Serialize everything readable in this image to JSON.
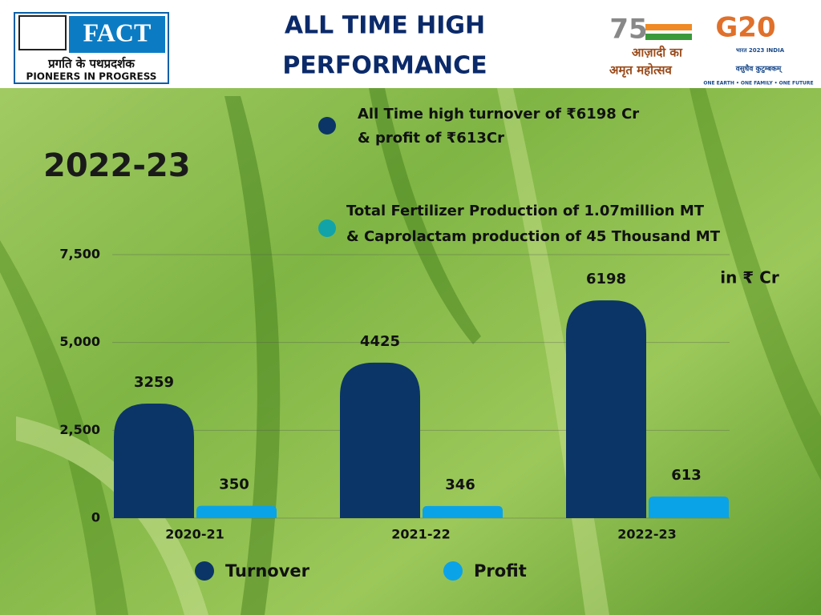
{
  "header": {
    "logo_name": "FACT",
    "logo_tagline_hindi": "प्रगति के पथप्रदर्शक",
    "logo_tagline": "PIONEERS IN PROGRESS",
    "title_lines": [
      "ALL TIME HIGH",
      "PERFORMANCE"
    ],
    "azadi_number": "75",
    "azadi_text": [
      "आज़ादी का",
      "अमृत महोत्सव"
    ],
    "g20": "G20",
    "g20_sub": "भारत 2023 INDIA",
    "g20_motto_hindi": "वसुधैव कुटुम्बकम्",
    "g20_motto": "ONE EARTH • ONE FAMILY • ONE FUTURE"
  },
  "summary": {
    "year": "2022-23",
    "points": [
      [
        "All Time high turnover of ₹6198 Cr",
        "& profit of ₹613Cr"
      ],
      [
        "Total Fertilizer Production of 1.07million MT",
        "& Caprolactam production of 45 Thousand MT"
      ]
    ],
    "point_colors": [
      "#0b3567",
      "#12a3a8"
    ]
  },
  "chart_data": {
    "type": "bar",
    "unit": "in ₹  Cr",
    "categories": [
      "2020-21",
      "2021-22",
      "2022-23"
    ],
    "series": [
      {
        "name": "Turnover",
        "color": "#0b3567",
        "values": [
          3259,
          4425,
          6198
        ]
      },
      {
        "name": "Profit",
        "color": "#0aa3e8",
        "values": [
          350,
          346,
          613
        ]
      }
    ],
    "ylim": [
      0,
      7500
    ],
    "yticks": [
      {
        "value": 7500,
        "label": "7,500"
      },
      {
        "value": 5000,
        "label": "5,000"
      },
      {
        "value": 2500,
        "label": "2,500"
      },
      0
    ],
    "grid": true
  }
}
